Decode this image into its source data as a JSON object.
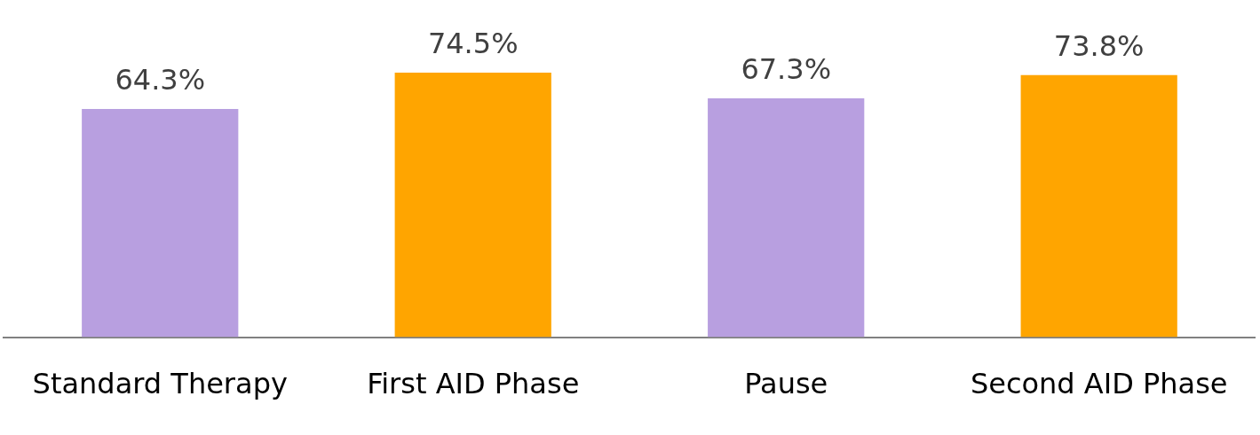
{
  "chart_data": {
    "type": "bar",
    "categories": [
      "Standard Therapy",
      "First AID Phase",
      "Pause",
      "Second AID Phase"
    ],
    "values": [
      64.3,
      74.5,
      67.3,
      73.8
    ],
    "colors": [
      "#b89fe0",
      "#ffa500",
      "#b89fe0",
      "#ffa500"
    ],
    "value_labels": [
      "64.3%",
      "74.5%",
      "67.3%",
      "73.8%"
    ],
    "grid": false,
    "legend": false,
    "tick_labels": "x"
  }
}
